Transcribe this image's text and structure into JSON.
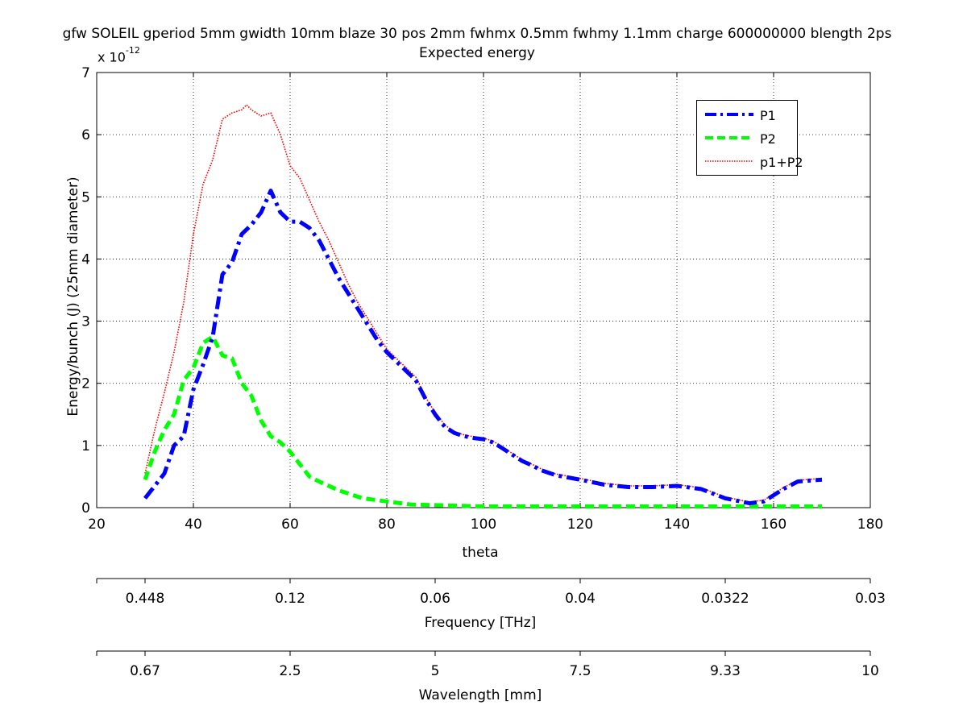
{
  "title_line1": "gfw SOLEIL gperiod 5mm gwidth 10mm blaze 30 pos 2mm fwhmx 0.5mm fwhmy 1.1mm charge 600000000 blength 2ps",
  "title_line2": "Expected energy",
  "exponent_prefix": "x 10",
  "exponent_power": "-12",
  "chart_data": {
    "type": "line",
    "xlabel": "theta",
    "ylabel": "Energy/bunch (J) (25mm diameter)",
    "xlim": [
      20,
      180
    ],
    "ylim": [
      0,
      7
    ],
    "y_scale_factor": "x 10^-12",
    "x_ticks": [
      "20",
      "40",
      "60",
      "80",
      "100",
      "120",
      "140",
      "160",
      "180"
    ],
    "y_ticks": [
      "0",
      "1",
      "2",
      "3",
      "4",
      "5",
      "6",
      "7"
    ],
    "grid": true,
    "legend_position": "top-right",
    "secondary_axes": [
      {
        "label": "Frequency [THz]",
        "tick_labels": [
          "0.448",
          "0.12",
          "0.06",
          "0.04",
          "0.0322",
          "0.03"
        ],
        "tick_at_theta": [
          30,
          60,
          90,
          120,
          150,
          180
        ]
      },
      {
        "label": "Wavelength [mm]",
        "tick_labels": [
          "0.67",
          "2.5",
          "5",
          "7.5",
          "9.33",
          "10"
        ],
        "tick_at_theta": [
          30,
          60,
          90,
          120,
          150,
          180
        ]
      }
    ],
    "series": [
      {
        "name": "P1",
        "color": "#0000ff",
        "style": "dashdot",
        "x": [
          30,
          32,
          34,
          36,
          38,
          40,
          42,
          44,
          46,
          48,
          50,
          52,
          54,
          56,
          58,
          60,
          62,
          64,
          66,
          68,
          70,
          72,
          74,
          76,
          78,
          80,
          82,
          84,
          86,
          88,
          90,
          92,
          94,
          96,
          98,
          100,
          102,
          104,
          106,
          108,
          110,
          112,
          115,
          120,
          125,
          130,
          135,
          140,
          145,
          150,
          155,
          158,
          160,
          162,
          165,
          170
        ],
        "y": [
          0.15,
          0.35,
          0.55,
          1.0,
          1.15,
          1.9,
          2.3,
          2.75,
          3.75,
          3.95,
          4.4,
          4.55,
          4.75,
          5.1,
          4.75,
          4.6,
          4.6,
          4.5,
          4.3,
          4.0,
          3.7,
          3.45,
          3.2,
          2.95,
          2.7,
          2.5,
          2.35,
          2.2,
          2.05,
          1.75,
          1.5,
          1.3,
          1.2,
          1.15,
          1.12,
          1.1,
          1.05,
          0.95,
          0.85,
          0.75,
          0.68,
          0.6,
          0.52,
          0.45,
          0.37,
          0.33,
          0.33,
          0.35,
          0.3,
          0.15,
          0.07,
          0.1,
          0.2,
          0.3,
          0.42,
          0.45
        ]
      },
      {
        "name": "P2",
        "color": "#00ff00",
        "style": "dashed",
        "x": [
          30,
          32,
          34,
          36,
          38,
          40,
          42,
          44,
          46,
          48,
          50,
          52,
          54,
          56,
          58,
          60,
          62,
          64,
          66,
          70,
          75,
          80,
          85,
          90,
          100,
          110,
          120,
          130,
          140,
          150,
          160,
          170
        ],
        "y": [
          0.45,
          0.9,
          1.25,
          1.5,
          2.05,
          2.25,
          2.65,
          2.75,
          2.45,
          2.4,
          2.0,
          1.8,
          1.4,
          1.15,
          1.05,
          0.9,
          0.7,
          0.5,
          0.42,
          0.28,
          0.15,
          0.1,
          0.05,
          0.04,
          0.02,
          0.02,
          0.02,
          0.02,
          0.02,
          0.02,
          0.02,
          0.02
        ]
      },
      {
        "name": "p1+P2",
        "color": "#ff0000",
        "style": "dotted",
        "x": [
          30,
          32,
          34,
          36,
          38,
          40,
          42,
          44,
          46,
          48,
          50,
          51,
          52,
          54,
          56,
          58,
          60,
          62,
          64,
          66,
          68,
          70,
          72,
          74,
          76,
          78,
          80,
          82,
          84,
          86,
          88,
          90,
          92,
          94,
          96,
          98,
          100,
          102,
          104,
          106,
          108,
          110,
          112,
          115,
          120,
          125,
          130,
          135,
          140,
          145,
          150,
          155,
          158,
          160,
          162,
          165,
          170
        ],
        "y": [
          0.55,
          1.25,
          1.85,
          2.5,
          3.3,
          4.4,
          5.2,
          5.6,
          6.25,
          6.35,
          6.4,
          6.48,
          6.4,
          6.3,
          6.35,
          6.0,
          5.5,
          5.3,
          4.95,
          4.6,
          4.3,
          3.95,
          3.6,
          3.3,
          3.05,
          2.8,
          2.55,
          2.4,
          2.25,
          2.1,
          1.78,
          1.53,
          1.33,
          1.22,
          1.17,
          1.14,
          1.12,
          1.07,
          0.97,
          0.87,
          0.77,
          0.7,
          0.62,
          0.54,
          0.47,
          0.39,
          0.35,
          0.35,
          0.37,
          0.32,
          0.17,
          0.09,
          0.12,
          0.22,
          0.32,
          0.44,
          0.47
        ]
      }
    ]
  }
}
